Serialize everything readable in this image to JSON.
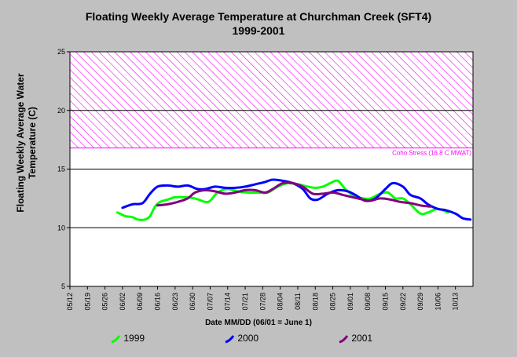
{
  "chart_data": {
    "type": "line",
    "title": "Floating Weekly Average Temperature at Churchman Creek (SFT4)",
    "subtitle": "1999-2001",
    "ylabel": "Floating Weekly Average Water Temperature (C)",
    "xlabel": "Date MM/DD (06/01 = June 1)",
    "ylim": [
      5,
      25
    ],
    "yticks": [
      5,
      10,
      15,
      20,
      25
    ],
    "xlim": [
      "05/12",
      "10/20"
    ],
    "xticks": [
      "05/12",
      "05/19",
      "05/26",
      "06/02",
      "06/09",
      "06/16",
      "06/23",
      "06/30",
      "07/07",
      "07/14",
      "07/21",
      "07/28",
      "08/04",
      "08/11",
      "08/18",
      "08/25",
      "09/01",
      "09/08",
      "09/15",
      "09/22",
      "09/29",
      "10/06",
      "10/13"
    ],
    "grid": "horizontal at 10, 15, 20",
    "threshold": {
      "label": "Coho Stress (16.8 C MWAT)",
      "from": 16.8,
      "to": 25,
      "color": "#ff00ff"
    },
    "legend_position": "bottom",
    "series": [
      {
        "name": "1999",
        "color": "#00ff00",
        "points": [
          [
            "05/31",
            11.3
          ],
          [
            "06/03",
            11.0
          ],
          [
            "06/06",
            10.9
          ],
          [
            "06/08",
            10.7
          ],
          [
            "06/11",
            10.7
          ],
          [
            "06/13",
            11.0
          ],
          [
            "06/15",
            11.8
          ],
          [
            "06/17",
            12.2
          ],
          [
            "06/20",
            12.4
          ],
          [
            "06/23",
            12.6
          ],
          [
            "06/27",
            12.6
          ],
          [
            "07/01",
            12.5
          ],
          [
            "07/05",
            12.2
          ],
          [
            "07/07",
            12.3
          ],
          [
            "07/10",
            13.0
          ],
          [
            "07/14",
            13.3
          ],
          [
            "07/18",
            13.1
          ],
          [
            "07/22",
            13.0
          ],
          [
            "07/26",
            13.0
          ],
          [
            "07/30",
            13.0
          ],
          [
            "08/03",
            13.5
          ],
          [
            "08/07",
            13.8
          ],
          [
            "08/11",
            13.7
          ],
          [
            "08/15",
            13.5
          ],
          [
            "08/18",
            13.4
          ],
          [
            "08/21",
            13.5
          ],
          [
            "08/24",
            13.8
          ],
          [
            "08/27",
            14.0
          ],
          [
            "08/30",
            13.3
          ],
          [
            "09/02",
            12.8
          ],
          [
            "09/06",
            12.5
          ],
          [
            "09/09",
            12.5
          ],
          [
            "09/13",
            12.9
          ],
          [
            "09/16",
            13.0
          ],
          [
            "09/19",
            12.5
          ],
          [
            "09/22",
            12.5
          ],
          [
            "09/25",
            12.0
          ],
          [
            "09/29",
            11.2
          ],
          [
            "10/02",
            11.3
          ],
          [
            "10/06",
            11.6
          ],
          [
            "10/10",
            11.3
          ]
        ]
      },
      {
        "name": "2000",
        "color": "#0000ff",
        "points": [
          [
            "06/02",
            11.7
          ],
          [
            "06/06",
            12.0
          ],
          [
            "06/10",
            12.1
          ],
          [
            "06/13",
            12.9
          ],
          [
            "06/16",
            13.5
          ],
          [
            "06/20",
            13.6
          ],
          [
            "06/24",
            13.5
          ],
          [
            "06/28",
            13.6
          ],
          [
            "07/02",
            13.3
          ],
          [
            "07/05",
            13.3
          ],
          [
            "07/09",
            13.5
          ],
          [
            "07/13",
            13.4
          ],
          [
            "07/17",
            13.4
          ],
          [
            "07/21",
            13.5
          ],
          [
            "07/25",
            13.7
          ],
          [
            "07/29",
            13.9
          ],
          [
            "08/01",
            14.1
          ],
          [
            "08/05",
            14.0
          ],
          [
            "08/09",
            13.8
          ],
          [
            "08/13",
            13.3
          ],
          [
            "08/16",
            12.5
          ],
          [
            "08/19",
            12.4
          ],
          [
            "08/23",
            12.9
          ],
          [
            "08/27",
            13.2
          ],
          [
            "08/31",
            13.1
          ],
          [
            "09/03",
            12.8
          ],
          [
            "09/07",
            12.3
          ],
          [
            "09/11",
            12.5
          ],
          [
            "09/15",
            13.3
          ],
          [
            "09/18",
            13.8
          ],
          [
            "09/22",
            13.5
          ],
          [
            "09/25",
            12.8
          ],
          [
            "09/29",
            12.5
          ],
          [
            "10/02",
            12.0
          ],
          [
            "10/06",
            11.6
          ],
          [
            "10/09",
            11.5
          ],
          [
            "10/13",
            11.2
          ],
          [
            "10/16",
            10.8
          ],
          [
            "10/19",
            10.7
          ]
        ]
      },
      {
        "name": "2001",
        "color": "#800080",
        "points": [
          [
            "06/16",
            11.9
          ],
          [
            "06/20",
            12.0
          ],
          [
            "06/24",
            12.2
          ],
          [
            "06/28",
            12.5
          ],
          [
            "07/01",
            13.0
          ],
          [
            "07/05",
            13.2
          ],
          [
            "07/09",
            13.1
          ],
          [
            "07/13",
            12.9
          ],
          [
            "07/17",
            13.0
          ],
          [
            "07/21",
            13.2
          ],
          [
            "07/25",
            13.2
          ],
          [
            "07/29",
            13.0
          ],
          [
            "08/01",
            13.3
          ],
          [
            "08/05",
            13.8
          ],
          [
            "08/09",
            13.8
          ],
          [
            "08/13",
            13.5
          ],
          [
            "08/17",
            12.9
          ],
          [
            "08/21",
            12.9
          ],
          [
            "08/25",
            13.0
          ],
          [
            "08/29",
            12.8
          ],
          [
            "09/02",
            12.6
          ],
          [
            "09/06",
            12.4
          ],
          [
            "09/09",
            12.3
          ],
          [
            "09/13",
            12.5
          ],
          [
            "09/17",
            12.4
          ],
          [
            "09/21",
            12.2
          ],
          [
            "09/25",
            12.1
          ],
          [
            "09/29",
            11.9
          ],
          [
            "10/03",
            11.8
          ]
        ]
      }
    ]
  }
}
